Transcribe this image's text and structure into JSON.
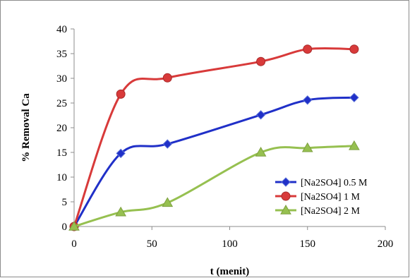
{
  "chart_data": {
    "type": "line",
    "title": "",
    "xlabel": "t (menit)",
    "ylabel": "% Removal Ca",
    "xlim": [
      0,
      200
    ],
    "ylim": [
      0,
      40
    ],
    "xticks": [
      0,
      50,
      100,
      150,
      200
    ],
    "yticks": [
      0,
      5,
      10,
      15,
      20,
      25,
      30,
      35,
      40
    ],
    "grid": false,
    "legend_position": "bottom-right",
    "series": [
      {
        "name": "[Na2SO4] 0.5 M",
        "color": "#2030c8",
        "marker": "diamond",
        "x": [
          0,
          30,
          60,
          120,
          150,
          180
        ],
        "y": [
          0,
          14.8,
          16.7,
          22.6,
          25.6,
          26.1
        ]
      },
      {
        "name": "[Na2SO4] 1 M",
        "color": "#d83a3a",
        "marker": "circle",
        "x": [
          0,
          30,
          60,
          120,
          150,
          180
        ],
        "y": [
          0,
          26.8,
          30.1,
          33.4,
          35.9,
          35.9
        ]
      },
      {
        "name": "[Na2SO4] 2 M",
        "color": "#96c050",
        "marker": "triangle",
        "x": [
          0,
          30,
          60,
          120,
          150,
          180
        ],
        "y": [
          0,
          2.9,
          4.8,
          15.0,
          15.9,
          16.3
        ]
      }
    ]
  }
}
